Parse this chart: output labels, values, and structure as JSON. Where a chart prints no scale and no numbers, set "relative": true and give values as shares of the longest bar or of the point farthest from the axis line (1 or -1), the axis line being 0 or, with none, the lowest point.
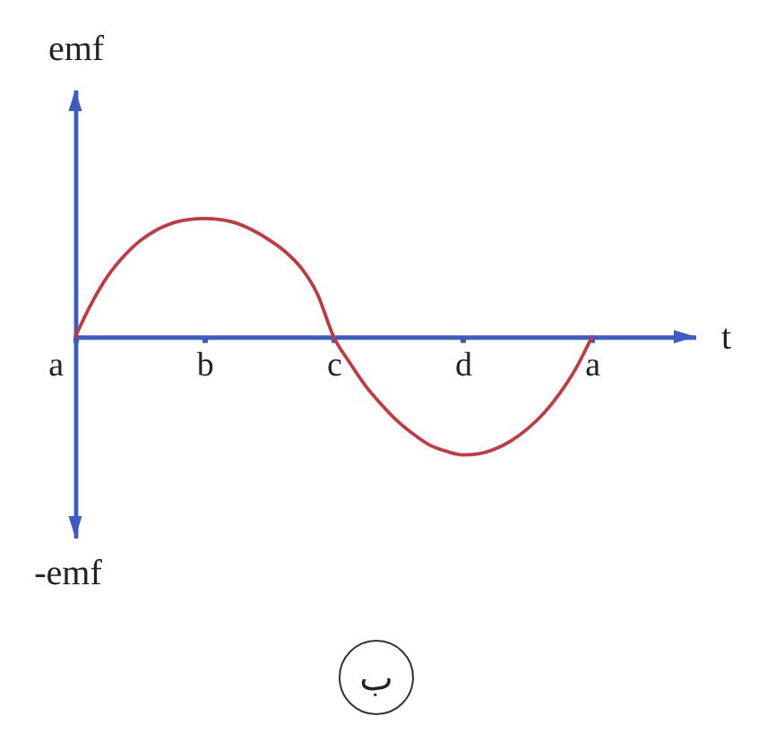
{
  "chart_data": {
    "type": "line",
    "xlabel": "t",
    "ylabel": "emf",
    "annotations": [
      "-emf",
      "ب"
    ],
    "relative": true,
    "tick_labels": "x",
    "line_style": "solid",
    "categories": [
      "a",
      null,
      null,
      null,
      null,
      null,
      null,
      null,
      "b",
      null,
      null,
      null,
      null,
      null,
      null,
      null,
      "c",
      null,
      null,
      null,
      null,
      null,
      null,
      null,
      "d",
      null,
      null,
      null,
      null,
      null,
      null,
      null,
      "a"
    ],
    "series": [
      {
        "color": "#c23a3f",
        "values": [
          0,
          0.28,
          0.51,
          0.68,
          0.81,
          0.9,
          0.96,
          0.99,
          1,
          0.99,
          0.96,
          0.9,
          0.82,
          0.72,
          0.58,
          0.36,
          0,
          -0.22,
          -0.42,
          -0.58,
          -0.72,
          -0.83,
          -0.92,
          -0.97,
          -1,
          -0.99,
          -0.95,
          -0.88,
          -0.78,
          -0.65,
          -0.48,
          -0.27,
          0
        ]
      }
    ]
  }
}
